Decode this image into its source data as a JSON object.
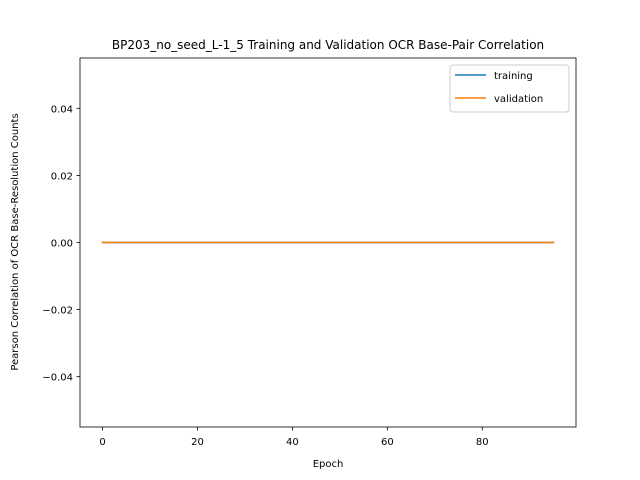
{
  "chart_data": {
    "type": "line",
    "title": "BP203_no_seed_L-1_5  Training and Validation OCR Base-Pair Correlation",
    "xlabel": "Epoch",
    "ylabel": "Pearson Correlation of OCR Base-Resolution Counts",
    "xlim": [
      -4.75,
      99.75
    ],
    "ylim": [
      -0.055,
      0.055
    ],
    "xticks": [
      0,
      20,
      40,
      60,
      80
    ],
    "yticks": [
      -0.04,
      -0.02,
      0.0,
      0.02,
      0.04
    ],
    "ytick_labels": [
      "−0.04",
      "−0.02",
      "0.00",
      "0.02",
      "0.04"
    ],
    "grid": false,
    "legend_position": "top-right",
    "series": [
      {
        "name": "training",
        "color": "#1f77b4",
        "x_start": 0,
        "x_end": 95,
        "value": 0.0
      },
      {
        "name": "validation",
        "color": "#ff7f0e",
        "x_start": 0,
        "x_end": 95,
        "value": 0.0
      }
    ]
  }
}
